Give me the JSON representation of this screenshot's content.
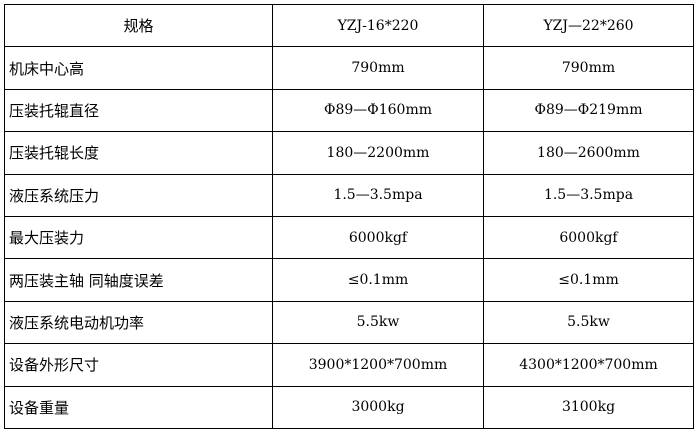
{
  "table": {
    "header": [
      "规格",
      "YZJ-16*220",
      "YZJ—22*260"
    ],
    "rows": [
      [
        "机床中心高",
        "790mm",
        "790mm"
      ],
      [
        "压装托辊直径",
        "Φ89—Φ160mm",
        "Φ89—Φ219mm"
      ],
      [
        "压装托辊长度",
        "180—2200mm",
        "180—2600mm"
      ],
      [
        "液压系统压力",
        "1.5—3.5mpa",
        "1.5—3.5mpa"
      ],
      [
        "最大压装力",
        "6000kgf",
        "6000kgf"
      ],
      [
        "两压装主轴 同轴度误差",
        "≤0.1mm",
        "≤0.1mm"
      ],
      [
        "液压系统电动机功率",
        "5.5kw",
        "5.5kw"
      ],
      [
        "设备外形尺寸",
        "3900*1200*700mm",
        "4300*1200*700mm"
      ],
      [
        "设备重量",
        "3000kg",
        "3100kg"
      ]
    ]
  }
}
